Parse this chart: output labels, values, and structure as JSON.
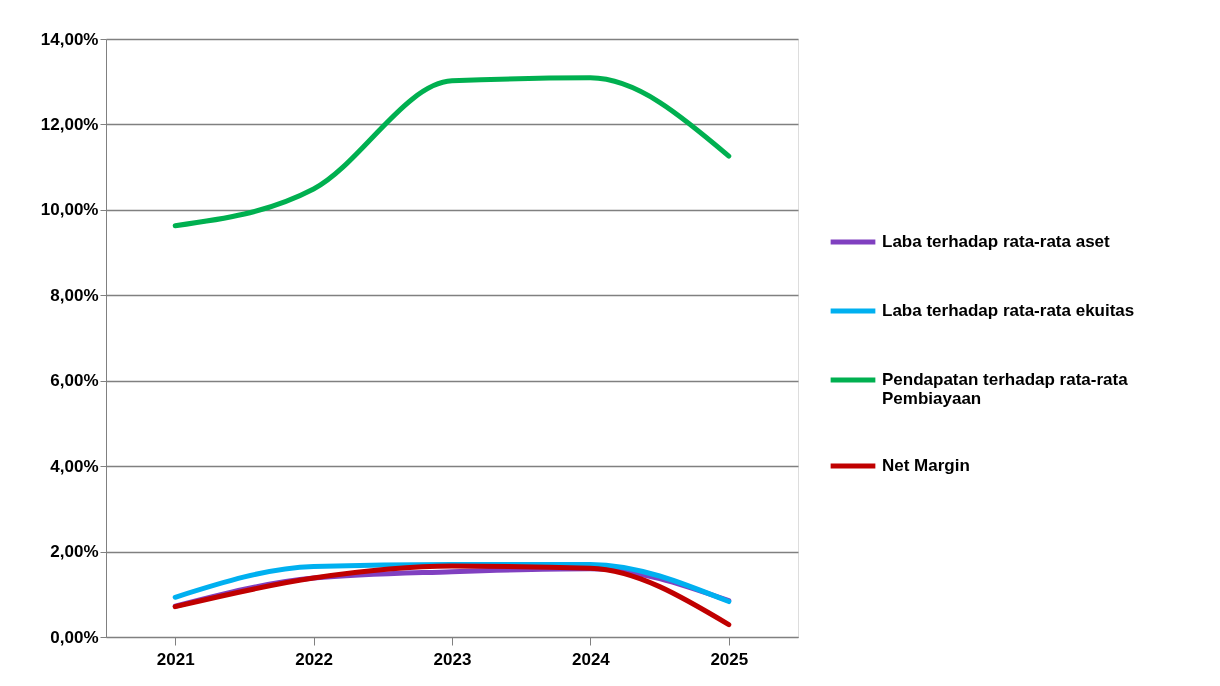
{
  "chart_data": {
    "type": "line",
    "categories": [
      "2021",
      "2022",
      "2023",
      "2024",
      "2025"
    ],
    "series": [
      {
        "name": "Laba terhadap rata-rata aset",
        "color": "#8040c0",
        "values": [
          0.72,
          1.38,
          1.53,
          1.6,
          0.85
        ]
      },
      {
        "name": "Laba terhadap rata-rata ekuitas",
        "color": "#00b0f0",
        "values": [
          0.93,
          1.65,
          1.7,
          1.7,
          0.83
        ]
      },
      {
        "name": "Pendapatan terhadap rata-rata Pembiayaan",
        "color": "#00b050",
        "values": [
          9.63,
          10.49,
          13.02,
          13.09,
          11.26
        ]
      },
      {
        "name": "Net Margin",
        "color": "#c00000",
        "values": [
          0.71,
          1.38,
          1.66,
          1.61,
          0.29
        ]
      }
    ],
    "ylim": [
      0,
      14
    ],
    "yticks": [
      {
        "value": 0,
        "label": "0,00%"
      },
      {
        "value": 2,
        "label": "2,00%"
      },
      {
        "value": 4,
        "label": "4,00%"
      },
      {
        "value": 6,
        "label": "6,00%"
      },
      {
        "value": 8,
        "label": "8,00%"
      },
      {
        "value": 10,
        "label": "10,00%"
      },
      {
        "value": 12,
        "label": "12,00%"
      },
      {
        "value": 14,
        "label": "14,00%"
      }
    ],
    "grid": "y",
    "legend": "right",
    "marker": "none",
    "line_style": "solid"
  }
}
